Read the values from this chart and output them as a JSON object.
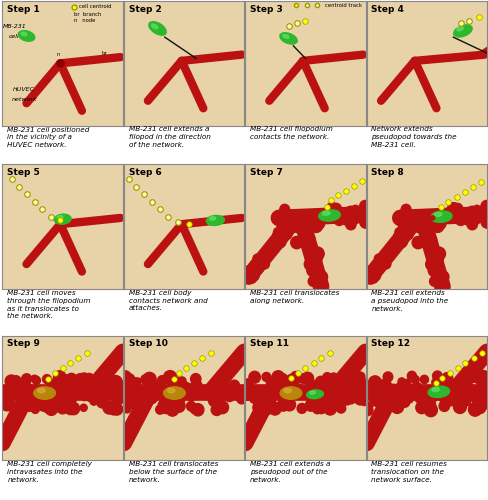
{
  "figure_bg": "#ffffff",
  "panel_bg": "#e8d2a8",
  "border_color": "#888888",
  "captions": [
    "MB-231 cell positioned\nin the vicinity of a\nHUVEC network.",
    "MB-231 cell extends a\nfilopod in the direction\nof the network.",
    "MB-231 cell filopodium\ncontacts the network.",
    "Network extends\npseudopod towards the\nMB-231 cell.",
    "MB-231 cell moves\nthrough the filopodium\nas it translocates to\nthe network.",
    "MB-231 cell body\ncontacts network and\nattaches.",
    "MB-231 cell translocates\nalong network.",
    "MB-231 cell extends\na pseudopod into the\nnetwork.",
    "MB-231 cell completely\nintravasates into the\nnetwork.",
    "MB-231 cell translocates\nbelow the surface of the\nnetwork.",
    "MB-231 cell extends a\npseudopod out of the\nnetwork.",
    "MB-231 cell resumes\ntranslocation on the\nnetwork surface."
  ],
  "huvec_color": "#bb1111",
  "mb231_color": "#2db82d",
  "mb231_inside_color": "#b8860b",
  "centroid_color": "#ffff00",
  "centroid_outline": "#999900",
  "text_color": "#000000"
}
